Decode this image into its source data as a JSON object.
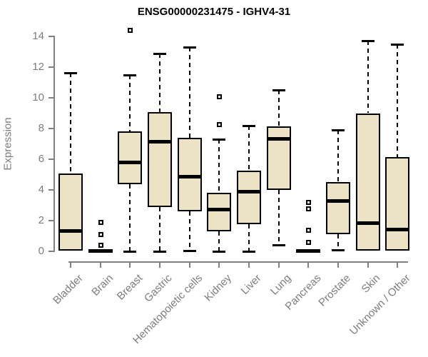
{
  "colors": {
    "box_fill": "#ebe3c4",
    "line": "#000000",
    "axis": "#808080",
    "label": "#7d7d7d",
    "title": "#000000"
  },
  "chart_data": {
    "type": "boxplot",
    "title": "ENSG00000231475 - IGHV4-31",
    "ylabel": "Expression",
    "xlabel": "",
    "ylim": [
      0,
      14
    ],
    "yticks": [
      0,
      2,
      4,
      6,
      8,
      10,
      12,
      14
    ],
    "grid": false,
    "legend": "none",
    "categories": [
      "Bladder",
      "Brain",
      "Breast",
      "Gastric",
      "Hematopoietic cells",
      "Kidney",
      "Liver",
      "Lung",
      "Pancreas",
      "Prostate",
      "Skin",
      "Unknown / Other"
    ],
    "series": [
      {
        "category": "Bladder",
        "low": 0.05,
        "q1": 0.05,
        "median": 1.35,
        "q3": 5.05,
        "high": 11.65,
        "outliers": []
      },
      {
        "category": "Brain",
        "low": 0.0,
        "q1": 0.0,
        "median": 0.05,
        "q3": 0.15,
        "high": 0.15,
        "outliers": [
          1.9,
          1.1,
          0.4
        ]
      },
      {
        "category": "Breast",
        "low": 0.0,
        "q1": 4.35,
        "median": 5.8,
        "q3": 7.8,
        "high": 11.5,
        "outliers": [
          14.4
        ]
      },
      {
        "category": "Gastric",
        "low": 0.0,
        "q1": 2.9,
        "median": 7.15,
        "q3": 9.05,
        "high": 12.9,
        "outliers": []
      },
      {
        "category": "Hematopoietic cells",
        "low": 0.05,
        "q1": 2.6,
        "median": 4.9,
        "q3": 7.4,
        "high": 13.3,
        "outliers": []
      },
      {
        "category": "Kidney",
        "low": 0.0,
        "q1": 1.3,
        "median": 2.75,
        "q3": 3.8,
        "high": 7.3,
        "outliers": [
          10.1,
          8.3
        ]
      },
      {
        "category": "Liver",
        "low": 0.0,
        "q1": 1.75,
        "median": 3.9,
        "q3": 5.25,
        "high": 8.2,
        "outliers": []
      },
      {
        "category": "Lung",
        "low": 0.4,
        "q1": 4.0,
        "median": 7.35,
        "q3": 8.15,
        "high": 10.5,
        "outliers": []
      },
      {
        "category": "Pancreas",
        "low": 0.0,
        "q1": 0.0,
        "median": 0.05,
        "q3": 0.15,
        "high": 0.15,
        "outliers": [
          3.2,
          2.8,
          1.4,
          0.6
        ]
      },
      {
        "category": "Prostate",
        "low": 0.1,
        "q1": 1.1,
        "median": 3.3,
        "q3": 4.5,
        "high": 7.9,
        "outliers": []
      },
      {
        "category": "Skin",
        "low": 0.05,
        "q1": 0.05,
        "median": 1.85,
        "q3": 9.0,
        "high": 13.7,
        "outliers": []
      },
      {
        "category": "Unknown / Other",
        "low": 0.05,
        "q1": 0.05,
        "median": 1.45,
        "q3": 6.15,
        "high": 13.5,
        "outliers": []
      }
    ]
  }
}
